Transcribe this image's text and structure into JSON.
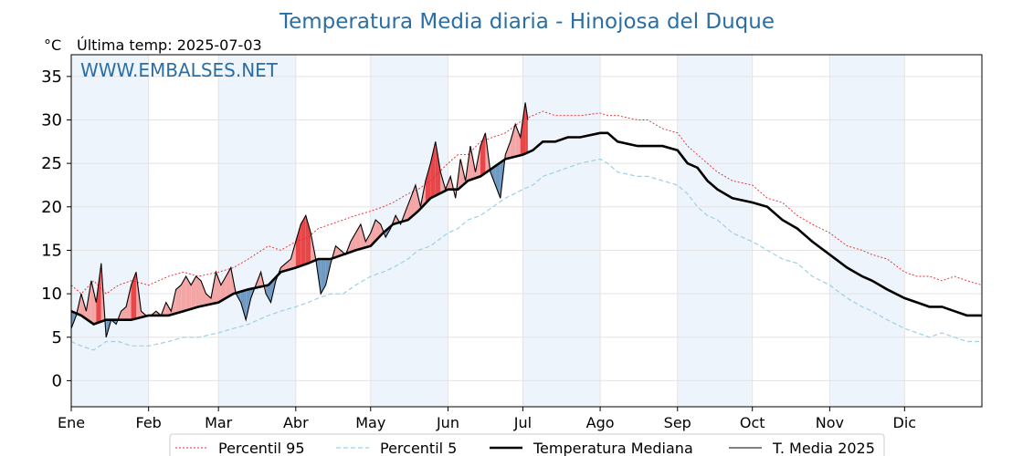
{
  "chart_data": {
    "type": "line",
    "title": "Temperatura Media diaria - Hinojosa del Duque",
    "ylabel": "°C",
    "subtitle": "Última temp: 2025-07-03",
    "watermark": "WWW.EMBALSES.NET",
    "x_unit": "day of year",
    "xlim": [
      1,
      366
    ],
    "ylim": [
      -3,
      37.5
    ],
    "yticks": [
      0,
      5,
      10,
      15,
      20,
      25,
      30,
      35
    ],
    "month_labels": [
      "Ene",
      "Feb",
      "Mar",
      "Abr",
      "May",
      "Jun",
      "Jul",
      "Ago",
      "Sep",
      "Oct",
      "Nov",
      "Dic"
    ],
    "month_start_days": [
      1,
      32,
      60,
      91,
      121,
      152,
      182,
      213,
      244,
      274,
      305,
      335
    ],
    "grid": true,
    "legend_position": "bottom",
    "colors": {
      "p95": "#e8262b",
      "p5": "#9ecfe4",
      "median": "#000000",
      "current": "#000000",
      "above": "#f4a6a6",
      "above_strong": "#e8474a",
      "below": "#6f9ac2",
      "below_strong": "#2a5d8f",
      "band": "#eef4fb"
    },
    "series": [
      {
        "name": "Percentil 95",
        "style": "dotted",
        "x": [
          1,
          5,
          10,
          15,
          20,
          25,
          32,
          40,
          46,
          52,
          60,
          66,
          72,
          80,
          85,
          91,
          96,
          100,
          105,
          110,
          115,
          121,
          126,
          130,
          136,
          140,
          145,
          152,
          156,
          160,
          165,
          170,
          175,
          182,
          186,
          190,
          195,
          200,
          205,
          213,
          216,
          220,
          228,
          232,
          238,
          244,
          248,
          252,
          256,
          260,
          266,
          274,
          280,
          286,
          292,
          298,
          305,
          312,
          318,
          322,
          328,
          335,
          340,
          345,
          350,
          355,
          360,
          366
        ],
        "y": [
          11,
          10,
          11.5,
          10,
          11,
          11.5,
          11,
          12,
          12.5,
          12,
          12.5,
          13,
          14,
          15.5,
          15,
          16,
          16.5,
          17.5,
          18,
          18.5,
          19,
          19.5,
          20,
          20.5,
          21.5,
          22,
          23,
          25,
          26,
          26,
          27.5,
          28,
          28.5,
          30,
          30.5,
          31,
          30.5,
          30.5,
          30.5,
          30.8,
          30.5,
          30.5,
          30,
          30,
          29,
          28.5,
          27,
          26,
          25,
          24,
          23,
          22.5,
          21,
          20.5,
          19,
          18,
          17,
          15.5,
          15,
          14.5,
          14,
          12.5,
          12,
          12,
          11.5,
          12,
          11.5,
          11
        ]
      },
      {
        "name": "Percentil 5",
        "style": "dashed",
        "x": [
          1,
          5,
          10,
          15,
          20,
          25,
          32,
          40,
          46,
          52,
          60,
          66,
          72,
          80,
          85,
          91,
          96,
          100,
          105,
          110,
          115,
          121,
          126,
          130,
          136,
          140,
          145,
          152,
          156,
          160,
          165,
          170,
          175,
          182,
          186,
          190,
          195,
          200,
          205,
          213,
          216,
          220,
          228,
          232,
          238,
          244,
          248,
          252,
          256,
          260,
          266,
          274,
          280,
          286,
          292,
          298,
          305,
          312,
          318,
          322,
          328,
          335,
          340,
          345,
          350,
          355,
          360,
          366
        ],
        "y": [
          4.5,
          4,
          3.5,
          4.5,
          4.5,
          4,
          4,
          4.5,
          5,
          5,
          5.5,
          6,
          6.5,
          7.5,
          8,
          8.5,
          9,
          9.5,
          10,
          10,
          11,
          12,
          12.5,
          13,
          14,
          15,
          15.5,
          17,
          17.5,
          18.5,
          19,
          20,
          21,
          22,
          22.5,
          23.5,
          24,
          24.5,
          25,
          25.5,
          25,
          24,
          23.5,
          23.5,
          23,
          22.5,
          21.5,
          20,
          19,
          18.5,
          17,
          16,
          15,
          14,
          13.5,
          12,
          11,
          9.5,
          8.5,
          8,
          7,
          6,
          5.5,
          5,
          5.5,
          5,
          4.5,
          4.5
        ]
      },
      {
        "name": "Temperatura Mediana",
        "style": "solid-thick",
        "x": [
          1,
          5,
          10,
          15,
          20,
          25,
          32,
          40,
          46,
          52,
          60,
          66,
          72,
          80,
          85,
          91,
          96,
          100,
          105,
          110,
          115,
          121,
          126,
          130,
          136,
          140,
          145,
          152,
          156,
          160,
          165,
          170,
          175,
          182,
          186,
          190,
          195,
          200,
          205,
          213,
          216,
          220,
          228,
          232,
          238,
          244,
          248,
          252,
          256,
          260,
          266,
          274,
          280,
          286,
          292,
          298,
          305,
          312,
          318,
          322,
          328,
          335,
          340,
          345,
          350,
          355,
          360,
          366
        ],
        "y": [
          8,
          7.5,
          6.5,
          7,
          7,
          7,
          7.5,
          7.5,
          8,
          8.5,
          9,
          10,
          10.5,
          11,
          12.5,
          13,
          13.5,
          14,
          14,
          14.5,
          15,
          15.5,
          17,
          18,
          18.5,
          19.5,
          21,
          22,
          22,
          23,
          23.5,
          24.5,
          25.5,
          26,
          26.5,
          27.5,
          27.5,
          28,
          28,
          28.5,
          28.5,
          27.5,
          27,
          27,
          27,
          26.5,
          25,
          24.5,
          23,
          22,
          21,
          20.5,
          20,
          18.5,
          17.5,
          16,
          14.5,
          13,
          12,
          11.5,
          10.5,
          9.5,
          9,
          8.5,
          8.5,
          8,
          7.5,
          7.5
        ]
      },
      {
        "name": "T. Media 2025",
        "style": "solid-thin",
        "x": [
          1,
          3,
          5,
          7,
          9,
          11,
          13,
          15,
          17,
          19,
          21,
          23,
          25,
          27,
          29,
          31,
          33,
          35,
          37,
          39,
          41,
          43,
          45,
          47,
          49,
          51,
          53,
          55,
          57,
          59,
          61,
          63,
          65,
          67,
          69,
          71,
          73,
          75,
          77,
          79,
          81,
          83,
          85,
          87,
          89,
          91,
          93,
          95,
          97,
          99,
          101,
          103,
          105,
          107,
          109,
          111,
          113,
          115,
          117,
          119,
          121,
          123,
          125,
          127,
          129,
          131,
          133,
          135,
          137,
          139,
          141,
          143,
          145,
          147,
          149,
          151,
          153,
          155,
          157,
          159,
          161,
          163,
          165,
          167,
          169,
          171,
          173,
          175,
          177,
          179,
          181,
          183,
          184
        ],
        "y": [
          6,
          7.5,
          10,
          8,
          11.5,
          9,
          13.5,
          5,
          7,
          6.5,
          8,
          8.5,
          11,
          12.5,
          8,
          7.5,
          7.5,
          8,
          7.5,
          9,
          8,
          10.5,
          11,
          12,
          11,
          12,
          11.5,
          10,
          9.5,
          12.5,
          11,
          12,
          13,
          10,
          9,
          7,
          9.5,
          11,
          12.5,
          10,
          9,
          11.5,
          13,
          13.5,
          14,
          16,
          18,
          19,
          17,
          14,
          10,
          11,
          13.5,
          15.5,
          15,
          14.5,
          16,
          17,
          18,
          16,
          17,
          18.5,
          18,
          16.5,
          17.5,
          19,
          18,
          19.5,
          21,
          22.5,
          20,
          23,
          25,
          27.5,
          24,
          22,
          23.5,
          21,
          25.5,
          23,
          27,
          24,
          27,
          28.5,
          24,
          22.5,
          21,
          26,
          27.5,
          29.5,
          28,
          32,
          30
        ]
      }
    ]
  }
}
